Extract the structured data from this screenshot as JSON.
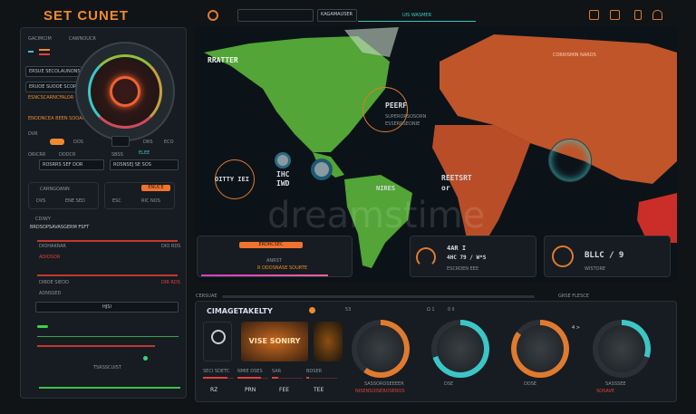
{
  "app": {
    "title": "SET CUNET"
  },
  "topbar": {
    "tabs": [
      {
        "label": "KAGAMAUSER"
      },
      {
        "label": "UIS WASMER",
        "active": true
      }
    ],
    "search": {
      "value": ""
    },
    "icons": [
      "report-icon",
      "calendar-icon",
      "battery-icon",
      "home-icon"
    ]
  },
  "left": {
    "header": [
      "GACIMCIM",
      "CAWNOUCR"
    ],
    "fields": [
      "ERSUE SECOLAUNONSPER",
      "ERUOE SUOOE SCOR",
      "ESNCSCARNCFALOR"
    ],
    "warning": "ENODNCEA BEEN SOOANE",
    "controls": {
      "label": "DVR",
      "values": [
        "DOS",
        "DRS",
        "ECO"
      ]
    },
    "sub": [
      "ORICRR",
      "DDDCR",
      "SBSS",
      "ELEE"
    ],
    "rows": [
      "ROSRRS SEF DOR",
      "ROSNSEJ SE SOS"
    ],
    "cards": [
      {
        "title": "CARNGOANN",
        "vals": [
          "DVS",
          "ENE SED"
        ]
      },
      {
        "button": "ENUCE",
        "vals": [
          "ESC",
          "RIC NOS"
        ]
      }
    ],
    "list_title": "CDIWY",
    "list": [
      {
        "label": "BRDSOPSAVASGERM FSFT",
        "value": ""
      },
      {
        "label": "DIOHAKRAR",
        "value": "DIO RDS"
      },
      {
        "label": "ADIOSOR",
        "value": ""
      },
      {
        "label": "DIBOE SIEOD",
        "value": "DIR RDS"
      },
      {
        "label": "ADNSSED",
        "value": ""
      }
    ],
    "section2": "HJSI",
    "section3": "TSRSSCUIST"
  },
  "map": {
    "labels": {
      "alaska": "RRATTER",
      "atlantic": "PEERF",
      "atlantic_sub": [
        "SUPERORSOSORN",
        "ESSERRSEONIE"
      ],
      "pacific": "OITTY IEI",
      "pacific2": [
        "IHC",
        "IWD"
      ],
      "south_atl": [
        "REETSRT",
        "or"
      ],
      "asia": "CORRISMIN NARDS",
      "sa": "NIRES"
    },
    "watermark": "dreamstime",
    "card1": {
      "button": "ERDRCSEC",
      "text": "ANRST",
      "sub": "R DDOSNASE SOURTE"
    },
    "card2": {
      "title": "4AR I",
      "sub": "4HC 79 / W*S",
      "foot": "ESCRDEN EEE"
    },
    "card3": {
      "title": "BLLC / 9",
      "foot": "WISTORE"
    },
    "colors": {
      "americas": "#5fbf3c",
      "eurasia_africa": "#e0612e",
      "australia": "#e0322a"
    }
  },
  "bottom": {
    "strip_left": "CERSUAE",
    "strip_right": "GRSE FLESCE",
    "title": "CIMAGETAKELTY",
    "feature": "VISE SONIRY",
    "top_labels": [
      "53",
      "Ω 1",
      "0 ll"
    ],
    "sliders": [
      {
        "label": "SECI SDETC",
        "value": "RZ",
        "level": 0.8
      },
      {
        "label": "NMIE DSES",
        "value": "PRN",
        "level": 0.75
      },
      {
        "label": "SAR",
        "value": "FEE",
        "level": 0.2
      },
      {
        "label": "BDSER",
        "value": "TEE",
        "level": 0.1
      }
    ],
    "gauges": [
      {
        "label": "SASSOROSEEEER",
        "sub": "NISENSOISEROSEROS",
        "level": 0.6,
        "color": "#e07a2e"
      },
      {
        "label": "DSE",
        "level": 0.7,
        "color": "#3cc6c6"
      },
      {
        "label": "DDSE",
        "level": 0.85,
        "color": "#e07a2e"
      },
      {
        "label": "SASSSEE",
        "sub": "SOSAVE",
        "level": 0.3,
        "color": "#3cc6c6"
      }
    ],
    "gauge_badge": "4 >"
  }
}
